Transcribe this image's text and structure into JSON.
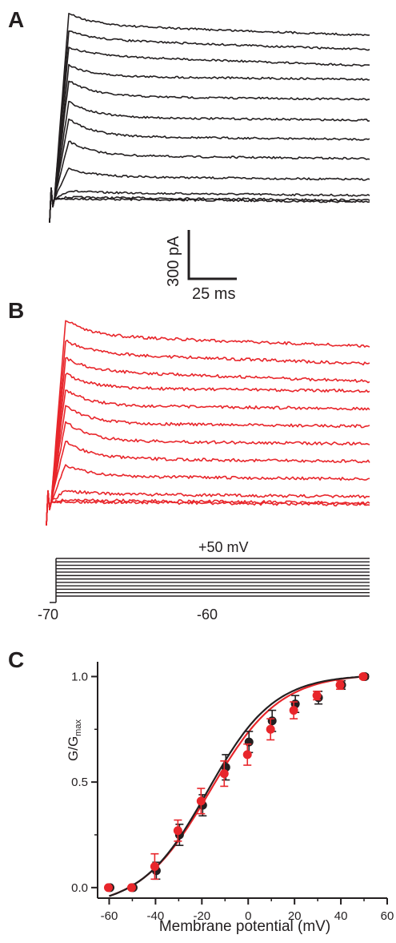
{
  "panels": {
    "a_label": "A",
    "b_label": "B",
    "c_label": "C"
  },
  "scale_bar": {
    "current_label": "300 pA",
    "time_label": "25 ms"
  },
  "protocol": {
    "top_label": "+50 mV",
    "holding_label": "-70",
    "step_label": "-60",
    "n_steps": 12
  },
  "colors": {
    "black_traces": "#231f20",
    "red_traces": "#e8262b",
    "axis": "#231f20"
  },
  "chart_data": {
    "type": "scatter",
    "xlabel": "Membrane potential (mV)",
    "ylabel_main": "G/G",
    "ylabel_sub": "max",
    "xlim": [
      -65,
      60
    ],
    "ylim": [
      -0.05,
      1.07
    ],
    "x_ticks": [
      -60,
      -40,
      -20,
      0,
      20,
      40,
      60
    ],
    "x_tick_labels": [
      "-60",
      "-40",
      "-20",
      "0",
      "20",
      "40",
      "60"
    ],
    "y_ticks": [
      0.0,
      0.5,
      1.0
    ],
    "y_tick_labels": [
      "0.0",
      "0.5",
      "1.0"
    ],
    "grid": false,
    "series": [
      {
        "color": "#231f20",
        "x": [
          -60,
          -50,
          -40,
          -30,
          -20,
          -10,
          0,
          10,
          20,
          30,
          40,
          50
        ],
        "y": [
          0.0,
          0.0,
          0.08,
          0.25,
          0.39,
          0.57,
          0.69,
          0.79,
          0.87,
          0.9,
          0.96,
          1.0
        ],
        "err": [
          0,
          0,
          0.04,
          0.05,
          0.05,
          0.06,
          0.05,
          0.05,
          0.04,
          0.03,
          0.02,
          0.01
        ],
        "fit_v_half": -17.5,
        "fit_slope": 14.3
      },
      {
        "color": "#e8262b",
        "x": [
          -60,
          -50,
          -40,
          -30,
          -20,
          -10,
          0,
          10,
          20,
          30,
          40,
          50
        ],
        "y": [
          0.0,
          0.0,
          0.1,
          0.27,
          0.41,
          0.54,
          0.63,
          0.75,
          0.84,
          0.91,
          0.96,
          1.0
        ],
        "err": [
          0,
          0,
          0.06,
          0.05,
          0.06,
          0.06,
          0.05,
          0.05,
          0.04,
          0.02,
          0.02,
          0.01
        ],
        "fit_v_half": -16.5,
        "fit_slope": 15.0
      }
    ]
  }
}
